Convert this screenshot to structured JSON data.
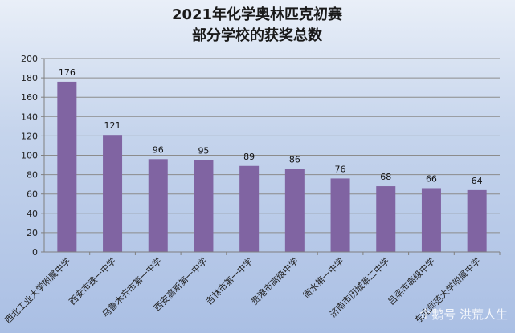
{
  "chart_data": {
    "type": "bar",
    "title": [
      "2021年化学奥林匹克初赛",
      "部分学校的获奖总数"
    ],
    "categories": [
      "西北工业大学附属中学",
      "西安市铁一中学",
      "乌鲁木齐市第一中学",
      "西安高新第一中学",
      "吉林市第一中学",
      "贵港市高级中学",
      "衡水第一中学",
      "济南市历城第二中学",
      "吕梁市高级中学",
      "东北师范大学附属中学"
    ],
    "values": [
      176,
      121,
      96,
      95,
      89,
      86,
      76,
      68,
      66,
      64
    ],
    "ylim": [
      0,
      200
    ],
    "yticks": [
      0,
      20,
      40,
      60,
      80,
      100,
      120,
      140,
      160,
      180,
      200
    ],
    "grid": true,
    "bar_color": "#8064a2",
    "xlabel": "",
    "ylabel": ""
  },
  "watermark": "企鹅号 洪荒人生"
}
